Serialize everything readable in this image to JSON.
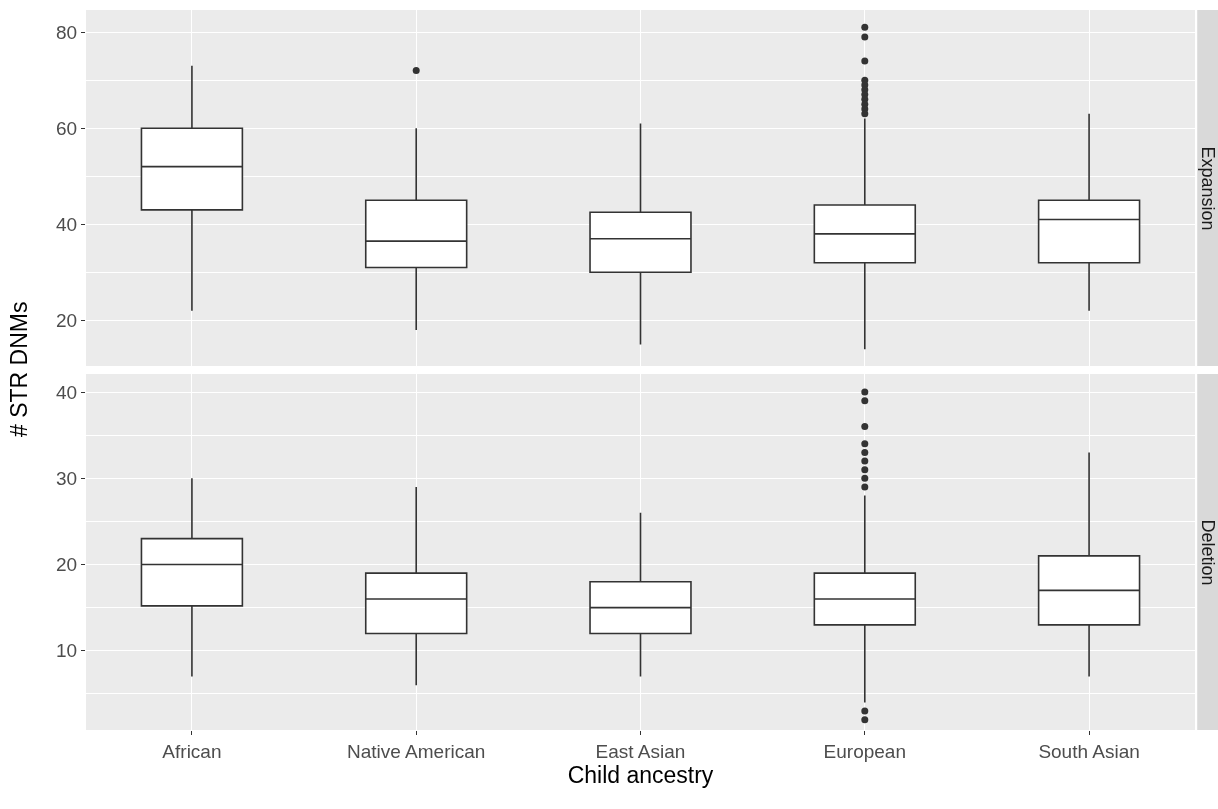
{
  "chart_data": [
    {
      "type": "box",
      "annotations": [
        "Expansion"
      ],
      "ylabel": "# STR DNMs",
      "categories": [
        "African",
        "Native American",
        "East Asian",
        "European",
        "South Asian"
      ],
      "ylim": [
        10.5,
        84.6
      ],
      "yticks": [
        20,
        {
          "value": 30,
          "label": null
        },
        40,
        {
          "value": 50,
          "label": null
        },
        60,
        {
          "value": 70,
          "label": null
        },
        80
      ],
      "grid": true,
      "tick_labels": "y",
      "series": [
        {
          "color": "#333333",
          "boxes": [
            {
              "low": 22,
              "q1": 43,
              "median": 52,
              "q3": 60,
              "high": 73
            },
            {
              "low": 18,
              "q1": 31,
              "median": 36.5,
              "q3": 45,
              "high": 60,
              "outliers": [
                72
              ]
            },
            {
              "low": 15,
              "q1": 30,
              "median": 37,
              "q3": 42.5,
              "high": 61
            },
            {
              "low": 14,
              "q1": 32,
              "median": 38,
              "q3": 44,
              "high": 62,
              "outliers": [
                81,
                79,
                74,
                70,
                69,
                68,
                67,
                66,
                65,
                64,
                63
              ]
            },
            {
              "low": 22,
              "q1": 32,
              "median": 41,
              "q3": 45,
              "high": 63
            }
          ]
        }
      ]
    },
    {
      "type": "box",
      "annotations": [
        "Deletion"
      ],
      "xlabel": "Child ancestry",
      "categories": [
        "African",
        "Native American",
        "East Asian",
        "European",
        "South Asian"
      ],
      "ylim": [
        0.8,
        42.1
      ],
      "yticks": [
        {
          "value": 5,
          "label": null
        },
        10,
        {
          "value": 15,
          "label": null
        },
        20,
        {
          "value": 25,
          "label": null
        },
        30,
        {
          "value": 35,
          "label": null
        },
        40
      ],
      "grid": true,
      "series": [
        {
          "color": "#333333",
          "boxes": [
            {
              "low": 7,
              "q1": 15.2,
              "median": 20,
              "q3": 23,
              "high": 30
            },
            {
              "low": 6,
              "q1": 12,
              "median": 16,
              "q3": 19,
              "high": 29
            },
            {
              "low": 7,
              "q1": 12,
              "median": 15,
              "q3": 18,
              "high": 26
            },
            {
              "low": 4,
              "q1": 13,
              "median": 16,
              "q3": 19,
              "high": 28,
              "outliers": [
                40,
                39,
                36,
                34,
                33,
                32,
                31,
                30,
                29,
                3,
                2
              ]
            },
            {
              "low": 7,
              "q1": 13,
              "median": 17,
              "q3": 21,
              "high": 33
            }
          ]
        }
      ]
    }
  ]
}
